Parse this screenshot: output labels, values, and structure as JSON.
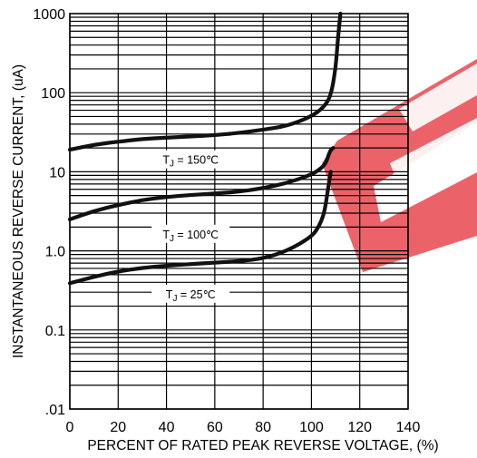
{
  "chart_data": {
    "type": "line",
    "xlabel": "PERCENT OF RATED PEAK REVERSE VOLTAGE, (%)",
    "ylabel": "INSTANTANEOUS REVERSE CURRENT, (uA)",
    "xlim": [
      0,
      140
    ],
    "ylim": [
      0.01,
      1000
    ],
    "y_scale": "log",
    "grid": true,
    "x_ticks": [
      "0",
      "20",
      "40",
      "60",
      "80",
      "100",
      "120",
      "140"
    ],
    "y_ticks": [
      {
        "value": 1000,
        "label": "1000"
      },
      {
        "value": 100,
        "label": "100"
      },
      {
        "value": 10,
        "label": "10"
      },
      {
        "value": 1,
        "label": "1.0"
      },
      {
        "value": 0.1,
        "label": "0.1"
      },
      {
        "value": 0.01,
        "label": ".01"
      }
    ],
    "series": [
      {
        "name": "TJ = 150℃",
        "label_sub": {
          "main": "T",
          "sub": "J",
          "rest": " = 150℃"
        },
        "label_at": {
          "x": 50,
          "y": 14
        },
        "x": [
          0,
          10,
          20,
          30,
          40,
          50,
          60,
          70,
          80,
          90,
          100,
          105,
          108,
          110,
          111,
          112
        ],
        "y": [
          19,
          22,
          24,
          26,
          27,
          28,
          29,
          31,
          34,
          38,
          50,
          65,
          90,
          200,
          500,
          1000
        ]
      },
      {
        "name": "TJ = 100℃",
        "label_sub": {
          "main": "T",
          "sub": "J",
          "rest": " = 100℃"
        },
        "label_at": {
          "x": 50,
          "y": 1.6
        },
        "x": [
          0,
          10,
          20,
          30,
          40,
          50,
          60,
          70,
          80,
          90,
          100,
          104,
          106,
          107,
          108,
          109
        ],
        "y": [
          2.5,
          3.2,
          3.8,
          4.4,
          4.8,
          5.1,
          5.3,
          5.6,
          6.2,
          7.2,
          9.2,
          11,
          13,
          16,
          19,
          20
        ]
      },
      {
        "name": "TJ = 25℃",
        "label_sub": {
          "main": "T",
          "sub": "J",
          "rest": " = 25℃"
        },
        "label_at": {
          "x": 50,
          "y": 0.28
        },
        "x": [
          0,
          10,
          20,
          30,
          40,
          50,
          60,
          70,
          80,
          90,
          100,
          103,
          105,
          106,
          107,
          108
        ],
        "y": [
          0.39,
          0.47,
          0.55,
          0.61,
          0.65,
          0.68,
          0.71,
          0.74,
          0.8,
          1.0,
          1.5,
          2.0,
          2.8,
          4.0,
          6.5,
          10
        ]
      }
    ]
  },
  "watermark": {
    "color": "#e8484f"
  }
}
